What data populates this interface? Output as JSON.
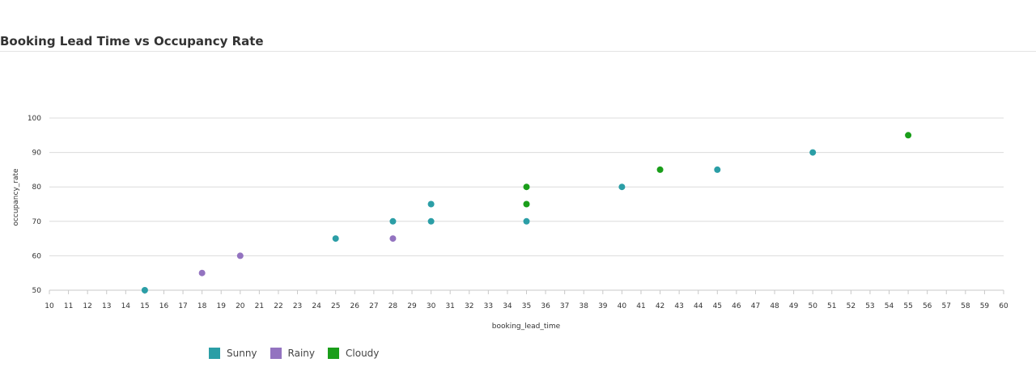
{
  "chart_data": {
    "type": "scatter",
    "title": "Booking Lead Time vs Occupancy Rate",
    "xlabel": "booking_lead_time",
    "ylabel": "occupancy_rate",
    "xlim": [
      10,
      60
    ],
    "ylim": [
      50,
      100
    ],
    "xticks": [
      "10",
      "11",
      "12",
      "13",
      "14",
      "15",
      "16",
      "17",
      "18",
      "19",
      "20",
      "21",
      "22",
      "23",
      "24",
      "25",
      "26",
      "27",
      "28",
      "29",
      "30",
      "31",
      "32",
      "33",
      "34",
      "35",
      "36",
      "37",
      "38",
      "39",
      "40",
      "41",
      "42",
      "43",
      "44",
      "45",
      "46",
      "47",
      "48",
      "49",
      "50",
      "51",
      "52",
      "53",
      "54",
      "55",
      "56",
      "57",
      "58",
      "59",
      "60"
    ],
    "yticks": [
      "50",
      "60",
      "70",
      "80",
      "90",
      "100"
    ],
    "grid": "horizontal",
    "legend_position": "bottom-left",
    "series": [
      {
        "name": "Sunny",
        "color": "#2b9ea6",
        "points": [
          {
            "x": 15,
            "y": 50
          },
          {
            "x": 25,
            "y": 65
          },
          {
            "x": 28,
            "y": 70
          },
          {
            "x": 30,
            "y": 70
          },
          {
            "x": 30,
            "y": 75
          },
          {
            "x": 35,
            "y": 70
          },
          {
            "x": 40,
            "y": 80
          },
          {
            "x": 45,
            "y": 85
          },
          {
            "x": 50,
            "y": 90
          }
        ]
      },
      {
        "name": "Rainy",
        "color": "#9373c0",
        "points": [
          {
            "x": 18,
            "y": 55
          },
          {
            "x": 20,
            "y": 60
          },
          {
            "x": 28,
            "y": 65
          }
        ]
      },
      {
        "name": "Cloudy",
        "color": "#1a9e1a",
        "points": [
          {
            "x": 35,
            "y": 75
          },
          {
            "x": 35,
            "y": 80
          },
          {
            "x": 42,
            "y": 85
          },
          {
            "x": 55,
            "y": 95
          }
        ]
      }
    ]
  }
}
